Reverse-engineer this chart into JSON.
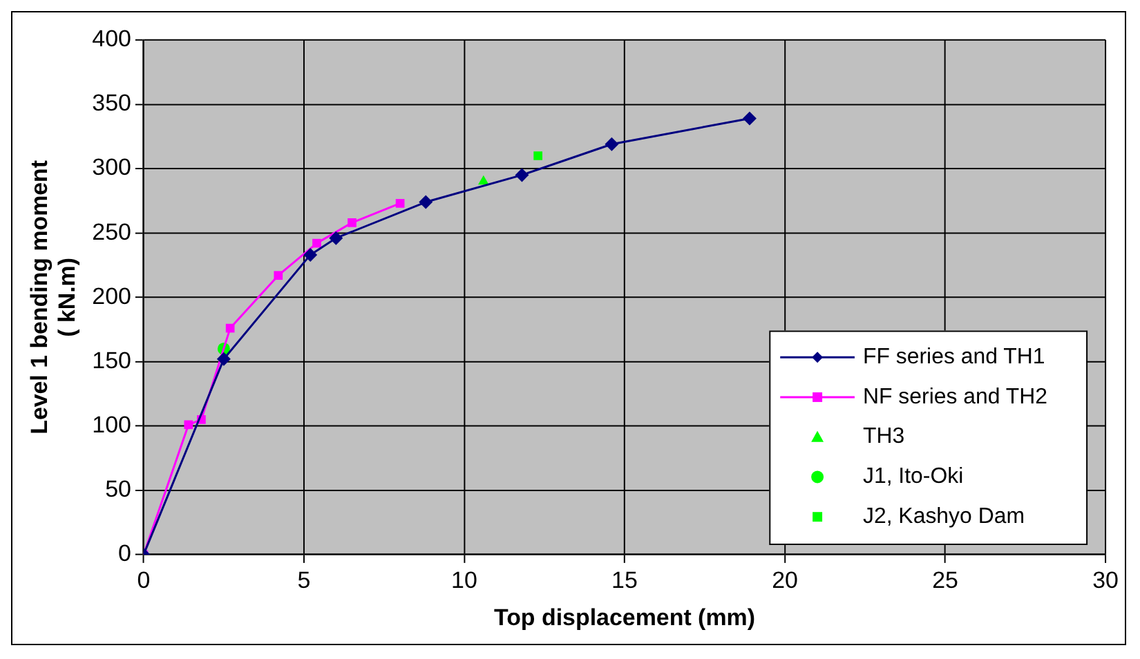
{
  "chart_data": {
    "type": "line",
    "xlabel": "Top displacement (mm)",
    "ylabel": "Level 1 bending moment\n( kN.m)",
    "xlim": [
      0,
      30
    ],
    "xticks": [
      0,
      5,
      10,
      15,
      20,
      25,
      30
    ],
    "ylim": [
      0,
      400
    ],
    "yticks": [
      0,
      50,
      100,
      150,
      200,
      250,
      300,
      350,
      400
    ],
    "grid": true,
    "legend": "bottom right",
    "line_style": "solid",
    "series": [
      {
        "name": "FF series and TH1",
        "marker": "diamond",
        "color": "#000080",
        "x": [
          0,
          2.5,
          5.2,
          6,
          8.8,
          11.8,
          14.6,
          18.9
        ],
        "values": [
          0,
          152,
          233,
          246,
          274,
          295,
          319,
          339
        ]
      },
      {
        "name": "NF series and TH2",
        "marker": "square",
        "color": "#ff00ff",
        "x": [
          0,
          1.4,
          1.8,
          2.7,
          4.2,
          5.4,
          6.5,
          8
        ],
        "values": [
          0,
          101,
          105,
          176,
          217,
          242,
          258,
          273
        ]
      },
      {
        "name": "TH3",
        "type": "scatter",
        "marker": "triangle",
        "color": "#00ff00",
        "x": [
          10.6
        ],
        "values": [
          290
        ]
      },
      {
        "name": "J1, Ito-Oki",
        "type": "scatter",
        "marker": "circle",
        "color": "#00ff00",
        "x": [
          2.5
        ],
        "values": [
          160
        ]
      },
      {
        "name": "J2, Kashyo Dam",
        "type": "scatter",
        "marker": "square",
        "color": "#00ff00",
        "x": [
          12.3
        ],
        "values": [
          310
        ]
      }
    ]
  }
}
